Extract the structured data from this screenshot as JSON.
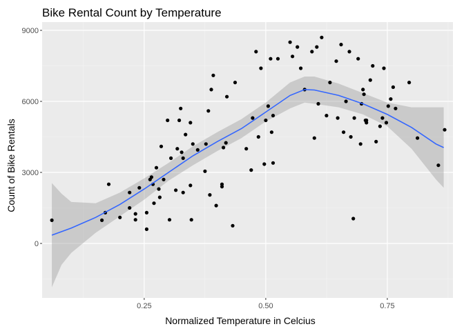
{
  "chart_data": {
    "type": "scatter",
    "title": "Bike Rental Count by Temperature",
    "xlabel": "Normalized Temperature in Celcius",
    "ylabel": "Count of Bike Rentals",
    "xlim": [
      0.04,
      0.885
    ],
    "ylim": [
      -2300,
      9350
    ],
    "x_ticks": [
      0.25,
      0.5,
      0.75
    ],
    "x_tick_labels": [
      "0.25",
      "0.50",
      "0.75"
    ],
    "y_ticks": [
      0,
      3000,
      6000,
      9000
    ],
    "y_tick_labels": [
      "0",
      "3000",
      "6000",
      "9000"
    ],
    "grid": true,
    "background": "#ebebeb",
    "point_color": "#000000",
    "smooth_color": "#3366ff",
    "band_color": "#999999",
    "points": [
      [
        0.06,
        980
      ],
      [
        0.163,
        980
      ],
      [
        0.17,
        1300
      ],
      [
        0.177,
        2500
      ],
      [
        0.2,
        1100
      ],
      [
        0.22,
        1500
      ],
      [
        0.22,
        2150
      ],
      [
        0.232,
        1000
      ],
      [
        0.232,
        1250
      ],
      [
        0.24,
        2350
      ],
      [
        0.255,
        600
      ],
      [
        0.255,
        1300
      ],
      [
        0.262,
        2700
      ],
      [
        0.265,
        2800
      ],
      [
        0.268,
        2500
      ],
      [
        0.27,
        1700
      ],
      [
        0.275,
        3200
      ],
      [
        0.28,
        2300
      ],
      [
        0.282,
        1950
      ],
      [
        0.285,
        4100
      ],
      [
        0.29,
        2700
      ],
      [
        0.298,
        5200
      ],
      [
        0.302,
        1000
      ],
      [
        0.305,
        3600
      ],
      [
        0.315,
        2250
      ],
      [
        0.318,
        4000
      ],
      [
        0.322,
        5200
      ],
      [
        0.325,
        5700
      ],
      [
        0.327,
        3850
      ],
      [
        0.33,
        3600
      ],
      [
        0.33,
        2150
      ],
      [
        0.335,
        4600
      ],
      [
        0.345,
        2450
      ],
      [
        0.345,
        5100
      ],
      [
        0.347,
        1000
      ],
      [
        0.35,
        4200
      ],
      [
        0.36,
        3950
      ],
      [
        0.375,
        3050
      ],
      [
        0.377,
        4200
      ],
      [
        0.382,
        5600
      ],
      [
        0.385,
        2050
      ],
      [
        0.388,
        6500
      ],
      [
        0.392,
        7100
      ],
      [
        0.398,
        1600
      ],
      [
        0.41,
        2400
      ],
      [
        0.41,
        2500
      ],
      [
        0.413,
        4050
      ],
      [
        0.418,
        4250
      ],
      [
        0.42,
        6200
      ],
      [
        0.432,
        750
      ],
      [
        0.437,
        6800
      ],
      [
        0.46,
        4000
      ],
      [
        0.47,
        3100
      ],
      [
        0.473,
        5300
      ],
      [
        0.48,
        8100
      ],
      [
        0.485,
        4500
      ],
      [
        0.49,
        7400
      ],
      [
        0.497,
        3350
      ],
      [
        0.5,
        5200
      ],
      [
        0.505,
        5800
      ],
      [
        0.51,
        7800
      ],
      [
        0.512,
        4700
      ],
      [
        0.515,
        5400
      ],
      [
        0.515,
        3400
      ],
      [
        0.525,
        7800
      ],
      [
        0.55,
        8500
      ],
      [
        0.555,
        7900
      ],
      [
        0.565,
        8300
      ],
      [
        0.572,
        7400
      ],
      [
        0.58,
        6500
      ],
      [
        0.595,
        8100
      ],
      [
        0.6,
        4450
      ],
      [
        0.605,
        8300
      ],
      [
        0.608,
        5900
      ],
      [
        0.615,
        8700
      ],
      [
        0.625,
        5400
      ],
      [
        0.632,
        6800
      ],
      [
        0.645,
        7700
      ],
      [
        0.648,
        5300
      ],
      [
        0.655,
        8400
      ],
      [
        0.66,
        4700
      ],
      [
        0.665,
        6000
      ],
      [
        0.672,
        8100
      ],
      [
        0.675,
        4500
      ],
      [
        0.68,
        1050
      ],
      [
        0.682,
        5300
      ],
      [
        0.69,
        7800
      ],
      [
        0.695,
        4200
      ],
      [
        0.697,
        5900
      ],
      [
        0.7,
        6500
      ],
      [
        0.702,
        6300
      ],
      [
        0.705,
        5200
      ],
      [
        0.707,
        5100
      ],
      [
        0.707,
        5200
      ],
      [
        0.715,
        6900
      ],
      [
        0.72,
        7500
      ],
      [
        0.727,
        4300
      ],
      [
        0.735,
        4950
      ],
      [
        0.74,
        5300
      ],
      [
        0.743,
        7400
      ],
      [
        0.748,
        5100
      ],
      [
        0.752,
        5800
      ],
      [
        0.757,
        6100
      ],
      [
        0.762,
        6600
      ],
      [
        0.767,
        5700
      ],
      [
        0.795,
        6800
      ],
      [
        0.812,
        4450
      ],
      [
        0.855,
        3300
      ],
      [
        0.868,
        4800
      ]
    ],
    "smooth_line": [
      [
        0.06,
        350
      ],
      [
        0.1,
        650
      ],
      [
        0.15,
        1100
      ],
      [
        0.2,
        1650
      ],
      [
        0.25,
        2300
      ],
      [
        0.3,
        3000
      ],
      [
        0.35,
        3700
      ],
      [
        0.4,
        4300
      ],
      [
        0.45,
        4850
      ],
      [
        0.5,
        5550
      ],
      [
        0.55,
        6250
      ],
      [
        0.58,
        6500
      ],
      [
        0.6,
        6480
      ],
      [
        0.65,
        6250
      ],
      [
        0.7,
        5900
      ],
      [
        0.75,
        5450
      ],
      [
        0.8,
        4900
      ],
      [
        0.85,
        4200
      ],
      [
        0.866,
        4050
      ]
    ],
    "band_upper": [
      [
        0.06,
        2550
      ],
      [
        0.08,
        2100
      ],
      [
        0.1,
        1750
      ],
      [
        0.15,
        1700
      ],
      [
        0.2,
        2150
      ],
      [
        0.25,
        2750
      ],
      [
        0.3,
        3400
      ],
      [
        0.35,
        4100
      ],
      [
        0.4,
        4700
      ],
      [
        0.45,
        5250
      ],
      [
        0.5,
        5950
      ],
      [
        0.55,
        6800
      ],
      [
        0.58,
        7050
      ],
      [
        0.6,
        7050
      ],
      [
        0.65,
        6750
      ],
      [
        0.7,
        6350
      ],
      [
        0.75,
        5950
      ],
      [
        0.8,
        5750
      ],
      [
        0.85,
        5750
      ],
      [
        0.866,
        5750
      ]
    ],
    "band_lower": [
      [
        0.06,
        -1850
      ],
      [
        0.08,
        -900
      ],
      [
        0.1,
        -400
      ],
      [
        0.15,
        450
      ],
      [
        0.2,
        1150
      ],
      [
        0.25,
        1850
      ],
      [
        0.3,
        2650
      ],
      [
        0.35,
        3300
      ],
      [
        0.4,
        3900
      ],
      [
        0.45,
        4450
      ],
      [
        0.5,
        5150
      ],
      [
        0.55,
        5700
      ],
      [
        0.58,
        5950
      ],
      [
        0.6,
        5900
      ],
      [
        0.65,
        5750
      ],
      [
        0.7,
        5450
      ],
      [
        0.75,
        4950
      ],
      [
        0.8,
        4000
      ],
      [
        0.85,
        2700
      ],
      [
        0.866,
        2350
      ]
    ]
  }
}
